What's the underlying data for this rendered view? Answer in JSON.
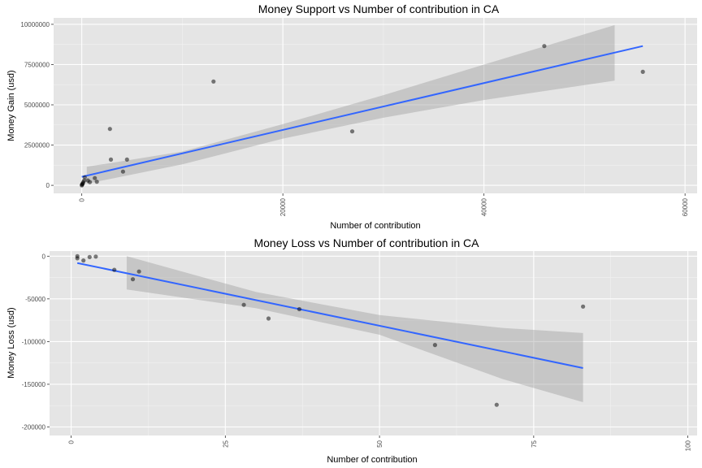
{
  "chart_data": [
    {
      "type": "scatter",
      "title": "Money Support vs Number of contribution in CA",
      "xlabel": "Number of contribution",
      "ylabel": "Money Gain (usd)",
      "xlim": [
        -2800,
        61200
      ],
      "ylim": [
        -500000,
        10400000
      ],
      "x_ticks": [
        0,
        20000,
        40000,
        60000
      ],
      "x_tick_labels": [
        "0",
        "20000",
        "40000",
        "60000"
      ],
      "y_ticks": [
        0,
        2500000,
        5000000,
        7500000,
        10000000
      ],
      "y_tick_labels": [
        "0",
        "2500000",
        "5000000",
        "7500000",
        "10000000"
      ],
      "grid": true,
      "points": [
        {
          "x": 0,
          "y": 0
        },
        {
          "x": 20,
          "y": 40000
        },
        {
          "x": 60,
          "y": 80000
        },
        {
          "x": 100,
          "y": 120000
        },
        {
          "x": 150,
          "y": 200000
        },
        {
          "x": 250,
          "y": 300000
        },
        {
          "x": 300,
          "y": 500000
        },
        {
          "x": 600,
          "y": 300000
        },
        {
          "x": 800,
          "y": 200000
        },
        {
          "x": 1300,
          "y": 450000
        },
        {
          "x": 1500,
          "y": 220000
        },
        {
          "x": 2900,
          "y": 1600000
        },
        {
          "x": 2800,
          "y": 3500000
        },
        {
          "x": 4100,
          "y": 850000
        },
        {
          "x": 4500,
          "y": 1600000
        },
        {
          "x": 13100,
          "y": 6450000
        },
        {
          "x": 26900,
          "y": 3350000
        },
        {
          "x": 46000,
          "y": 8650000
        },
        {
          "x": 55800,
          "y": 7050000
        }
      ],
      "fit_line": {
        "x": [
          0,
          55800
        ],
        "y": [
          530000,
          8650000
        ]
      },
      "confidence_band": {
        "x": [
          500,
          10000,
          20000,
          30000,
          40000,
          53000
        ],
        "upper": [
          1150000,
          2100000,
          3800000,
          5600000,
          7500000,
          9950000
        ],
        "lower": [
          100000,
          1300000,
          2900000,
          4200000,
          5300000,
          6500000
        ]
      }
    },
    {
      "type": "scatter",
      "title": "Money Loss vs Number of contribution in CA",
      "xlabel": "Number of contribution",
      "ylabel": "Money Loss (usd)",
      "xlim": [
        -3.5,
        101.5
      ],
      "ylim": [
        -210000,
        6000
      ],
      "x_ticks": [
        0,
        25,
        50,
        75,
        100
      ],
      "x_tick_labels": [
        "0",
        "25",
        "50",
        "75",
        "100"
      ],
      "y_ticks": [
        0,
        -50000,
        -100000,
        -150000,
        -200000
      ],
      "y_tick_labels": [
        "0",
        "-50000",
        "-100000",
        "-150000",
        "-200000"
      ],
      "grid": true,
      "points": [
        {
          "x": 1,
          "y": 0
        },
        {
          "x": 1,
          "y": -2500
        },
        {
          "x": 2,
          "y": -5000
        },
        {
          "x": 3,
          "y": -1000
        },
        {
          "x": 4,
          "y": -500
        },
        {
          "x": 7,
          "y": -16000
        },
        {
          "x": 10,
          "y": -27000
        },
        {
          "x": 11,
          "y": -18000
        },
        {
          "x": 28,
          "y": -57000
        },
        {
          "x": 32,
          "y": -73000
        },
        {
          "x": 37,
          "y": -62000
        },
        {
          "x": 59,
          "y": -104000
        },
        {
          "x": 69,
          "y": -174000
        },
        {
          "x": 83,
          "y": -59000
        }
      ],
      "fit_line": {
        "x": [
          1,
          83
        ],
        "y": [
          -8000,
          -131000
        ]
      },
      "confidence_band": {
        "x": [
          9,
          30,
          50,
          70,
          83
        ],
        "upper": [
          0,
          -42000,
          -69000,
          -84000,
          -90000
        ],
        "lower": [
          -39000,
          -61000,
          -92000,
          -144000,
          -171000
        ]
      }
    }
  ]
}
